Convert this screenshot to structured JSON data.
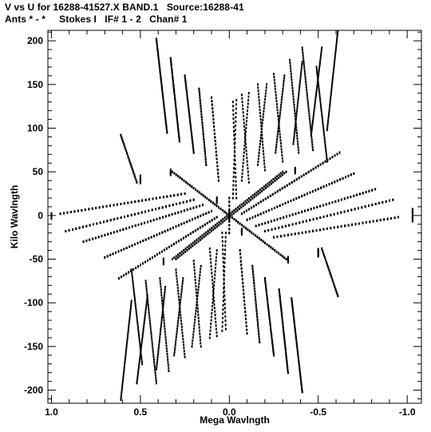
{
  "header": {
    "title_line1": "V vs U for 16288-41527.X BAND.1   Source:16288-41",
    "title_line2": "Ants * - *     Stokes I   IF# 1 - 2   Chan# 1"
  },
  "chart_data": {
    "type": "scatter",
    "title": "V vs U for 16288-41527.X BAND.1   Source:16288-41",
    "xlabel": "Mega Wavlngth",
    "ylabel": "Kilo Wavlngth",
    "xlim": [
      1.02,
      -1.08
    ],
    "ylim": [
      -215,
      212
    ],
    "x_ticks": [
      1.0,
      0.5,
      0.0,
      -0.5,
      -1.0
    ],
    "x_tick_labels": [
      "1.0",
      "0.5",
      "0.0",
      "-0.5",
      "-1.0"
    ],
    "y_ticks": [
      200,
      150,
      100,
      50,
      0,
      -50,
      -100,
      -150,
      -200
    ],
    "y_tick_labels": [
      "200",
      "150",
      "100",
      "50",
      "0",
      "-50",
      "-100",
      "-150",
      "-200"
    ],
    "grid": false,
    "marker_color": "#000000",
    "tracks": [
      {
        "from": [
          -0.61,
          211
        ],
        "to": [
          -0.55,
          98
        ],
        "points": 44
      },
      {
        "from": [
          -0.52,
          192
        ],
        "to": [
          -0.46,
          92
        ],
        "points": 38
      },
      {
        "from": [
          -0.41,
          176
        ],
        "to": [
          -0.36,
          82
        ],
        "points": 34
      },
      {
        "from": [
          -0.31,
          160
        ],
        "to": [
          -0.26,
          72
        ],
        "points": 30
      },
      {
        "from": [
          -0.21,
          150
        ],
        "to": [
          -0.16,
          58
        ],
        "points": 28
      },
      {
        "from": [
          -0.11,
          140
        ],
        "to": [
          -0.07,
          40
        ],
        "points": 26
      },
      {
        "from": [
          -0.04,
          132
        ],
        "to": [
          -0.02,
          20
        ],
        "points": 24
      },
      {
        "from": [
          0.41,
          202
        ],
        "to": [
          0.35,
          95
        ],
        "points": 40
      },
      {
        "from": [
          0.33,
          180
        ],
        "to": [
          0.28,
          85
        ],
        "points": 36
      },
      {
        "from": [
          0.25,
          160
        ],
        "to": [
          0.2,
          72
        ],
        "points": 32
      },
      {
        "from": [
          0.17,
          145
        ],
        "to": [
          0.13,
          58
        ],
        "points": 28
      },
      {
        "from": [
          0.1,
          135
        ],
        "to": [
          0.06,
          40
        ],
        "points": 24
      },
      {
        "from": [
          0.61,
          92
        ],
        "to": [
          0.52,
          38
        ],
        "points": 22
      },
      {
        "from": [
          0.55,
          -62
        ],
        "to": [
          0.49,
          -170
        ],
        "points": 40
      },
      {
        "from": [
          0.47,
          -75
        ],
        "to": [
          0.41,
          -192
        ],
        "points": 40
      },
      {
        "from": [
          0.39,
          -72
        ],
        "to": [
          0.34,
          -178
        ],
        "points": 34
      },
      {
        "from": [
          0.3,
          -62
        ],
        "to": [
          0.25,
          -162
        ],
        "points": 30
      },
      {
        "from": [
          0.2,
          -52
        ],
        "to": [
          0.16,
          -150
        ],
        "points": 28
      },
      {
        "from": [
          0.11,
          -38
        ],
        "to": [
          0.07,
          -138
        ],
        "points": 26
      },
      {
        "from": [
          0.04,
          -20
        ],
        "to": [
          0.02,
          -130
        ],
        "points": 24
      },
      {
        "from": [
          -0.35,
          -95
        ],
        "to": [
          -0.41,
          -202
        ],
        "points": 40
      },
      {
        "from": [
          -0.28,
          -85
        ],
        "to": [
          -0.33,
          -180
        ],
        "points": 36
      },
      {
        "from": [
          -0.2,
          -72
        ],
        "to": [
          -0.25,
          -160
        ],
        "points": 32
      },
      {
        "from": [
          -0.13,
          -58
        ],
        "to": [
          -0.17,
          -145
        ],
        "points": 28
      },
      {
        "from": [
          -0.06,
          -40
        ],
        "to": [
          -0.1,
          -135
        ],
        "points": 24
      },
      {
        "from": [
          -0.52,
          -38
        ],
        "to": [
          -0.61,
          -92
        ],
        "points": 22
      },
      {
        "from": [
          -0.07,
          2
        ],
        "to": [
          -0.62,
          72
        ],
        "points": 42
      },
      {
        "from": [
          -0.1,
          -5
        ],
        "to": [
          -0.7,
          48
        ],
        "points": 40
      },
      {
        "from": [
          -0.15,
          -12
        ],
        "to": [
          -0.82,
          30
        ],
        "points": 40
      },
      {
        "from": [
          -0.2,
          -18
        ],
        "to": [
          -0.92,
          18
        ],
        "points": 38
      },
      {
        "from": [
          -0.25,
          -25
        ],
        "to": [
          -0.95,
          -2
        ],
        "points": 36
      },
      {
        "from": [
          0.07,
          -2
        ],
        "to": [
          0.62,
          -72
        ],
        "points": 42
      },
      {
        "from": [
          0.1,
          5
        ],
        "to": [
          0.7,
          -48
        ],
        "points": 40
      },
      {
        "from": [
          0.15,
          12
        ],
        "to": [
          0.82,
          -30
        ],
        "points": 40
      },
      {
        "from": [
          0.2,
          18
        ],
        "to": [
          0.92,
          -18
        ],
        "points": 38
      },
      {
        "from": [
          0.25,
          25
        ],
        "to": [
          0.95,
          2
        ],
        "points": 36
      },
      {
        "from": [
          0.32,
          50
        ],
        "to": [
          -0.32,
          -50
        ],
        "points": 60
      },
      {
        "from": [
          -0.3,
          50
        ],
        "to": [
          0.32,
          -50
        ],
        "points": 60
      },
      {
        "from": [
          0.0,
          20
        ],
        "to": [
          0.0,
          -20
        ],
        "points": 10
      }
    ],
    "clusters": [
      {
        "x": 1.0,
        "y": 0,
        "points": 6
      },
      {
        "x": -1.03,
        "y": 5,
        "points": 6
      },
      {
        "x": -1.03,
        "y": -3,
        "points": 6
      },
      {
        "x": 0.5,
        "y": 42,
        "points": 8
      },
      {
        "x": -0.5,
        "y": -42,
        "points": 8
      },
      {
        "x": 0.33,
        "y": 50,
        "points": 6
      },
      {
        "x": -0.33,
        "y": -50,
        "points": 6
      },
      {
        "x": -0.37,
        "y": 52,
        "points": 6
      },
      {
        "x": 0.37,
        "y": -52,
        "points": 6
      },
      {
        "x": 0.0,
        "y": 0,
        "points": 10
      },
      {
        "x": 0.07,
        "y": 18,
        "points": 6
      },
      {
        "x": -0.07,
        "y": -18,
        "points": 6
      }
    ]
  }
}
